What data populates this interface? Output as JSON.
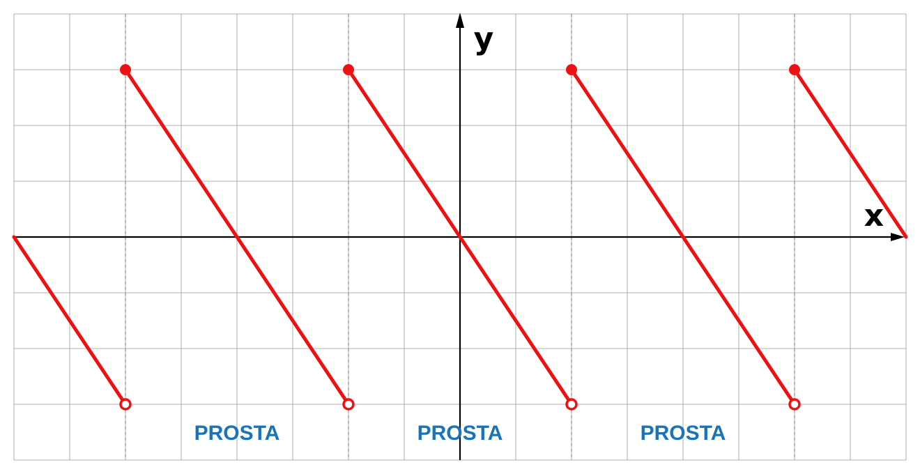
{
  "chart_data": {
    "type": "line",
    "xlim": [
      -8,
      8
    ],
    "ylim": [
      -4,
      4
    ],
    "grid": true,
    "axis_labels": {
      "x": "x",
      "y": "y"
    },
    "dashed_verticals_x": [
      -6,
      -2,
      2,
      6
    ],
    "series": [
      {
        "color": "#ee1111",
        "segments": [
          {
            "x": [
              -8,
              -6
            ],
            "y": [
              0,
              -3
            ],
            "start": "none",
            "end": "open"
          },
          {
            "x": [
              -6,
              -2
            ],
            "y": [
              3,
              -3
            ],
            "start": "closed",
            "end": "open"
          },
          {
            "x": [
              -2,
              2
            ],
            "y": [
              3,
              -3
            ],
            "start": "closed",
            "end": "open"
          },
          {
            "x": [
              2,
              6
            ],
            "y": [
              3,
              -3
            ],
            "start": "closed",
            "end": "open"
          },
          {
            "x": [
              6,
              8
            ],
            "y": [
              3,
              0
            ],
            "start": "closed",
            "end": "none"
          }
        ]
      }
    ],
    "annotations": [
      {
        "text": "PROSTA",
        "x": -4,
        "y": -3.5
      },
      {
        "text": "PROSTA",
        "x": 0,
        "y": -3.5
      },
      {
        "text": "PROSTA",
        "x": 4,
        "y": -3.5
      }
    ]
  }
}
